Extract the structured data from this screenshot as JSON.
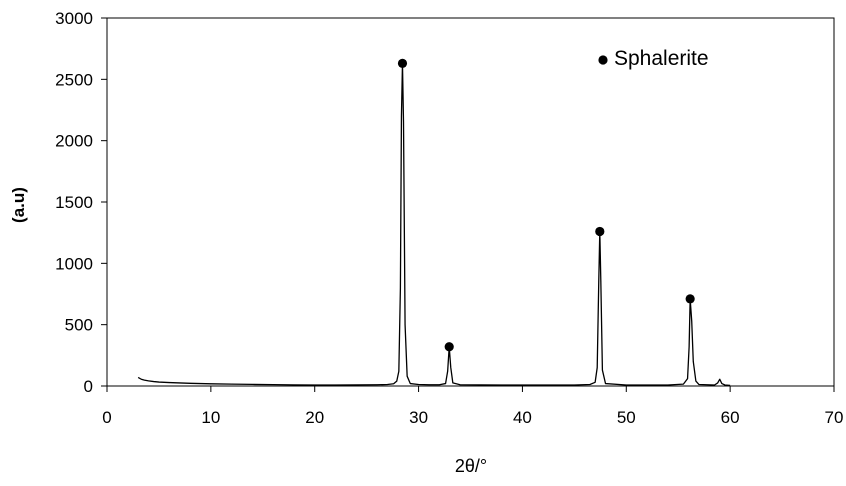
{
  "chart_data": {
    "type": "line",
    "xlabel": "2θ/°",
    "ylabel": "(a.u)",
    "xlim": [
      0,
      70
    ],
    "ylim": [
      0,
      3000
    ],
    "x_ticks": [
      0,
      10,
      20,
      30,
      40,
      50,
      60,
      70
    ],
    "y_ticks": [
      0,
      500,
      1000,
      1500,
      2000,
      2500,
      3000
    ],
    "grid": false,
    "legend": {
      "position": "top-right",
      "entries": [
        {
          "label": "Sphalerite",
          "marker": "filled-circle",
          "color": "#000000"
        }
      ]
    },
    "series": [
      {
        "color": "#000000",
        "points": [
          [
            3.0,
            70
          ],
          [
            3.3,
            55
          ],
          [
            3.6,
            48
          ],
          [
            4.0,
            42
          ],
          [
            4.5,
            36
          ],
          [
            5.0,
            32
          ],
          [
            5.5,
            30
          ],
          [
            6.0,
            28
          ],
          [
            7.0,
            25
          ],
          [
            8.0,
            22
          ],
          [
            9.0,
            20
          ],
          [
            10.0,
            18
          ],
          [
            12.0,
            15
          ],
          [
            14.0,
            13
          ],
          [
            16.0,
            11
          ],
          [
            18.0,
            9
          ],
          [
            20.0,
            8
          ],
          [
            22.0,
            8
          ],
          [
            24.0,
            9
          ],
          [
            26.0,
            10
          ],
          [
            27.0,
            12
          ],
          [
            27.6,
            18
          ],
          [
            27.9,
            40
          ],
          [
            28.1,
            120
          ],
          [
            28.25,
            800
          ],
          [
            28.35,
            2200
          ],
          [
            28.45,
            2630
          ],
          [
            28.55,
            2150
          ],
          [
            28.7,
            500
          ],
          [
            28.9,
            80
          ],
          [
            29.2,
            20
          ],
          [
            30.0,
            12
          ],
          [
            31.0,
            10
          ],
          [
            32.0,
            10
          ],
          [
            32.6,
            20
          ],
          [
            32.8,
            120
          ],
          [
            32.95,
            320
          ],
          [
            33.1,
            150
          ],
          [
            33.3,
            25
          ],
          [
            34.0,
            10
          ],
          [
            38.0,
            8
          ],
          [
            42.0,
            8
          ],
          [
            45.0,
            8
          ],
          [
            46.5,
            12
          ],
          [
            47.0,
            30
          ],
          [
            47.2,
            150
          ],
          [
            47.35,
            850
          ],
          [
            47.45,
            1260
          ],
          [
            47.55,
            850
          ],
          [
            47.7,
            130
          ],
          [
            48.0,
            20
          ],
          [
            50.0,
            8
          ],
          [
            52.0,
            8
          ],
          [
            54.0,
            8
          ],
          [
            55.5,
            15
          ],
          [
            55.9,
            60
          ],
          [
            56.05,
            320
          ],
          [
            56.15,
            710
          ],
          [
            56.3,
            530
          ],
          [
            56.45,
            200
          ],
          [
            56.7,
            40
          ],
          [
            57.0,
            12
          ],
          [
            58.5,
            8
          ],
          [
            58.8,
            25
          ],
          [
            59.0,
            55
          ],
          [
            59.2,
            20
          ],
          [
            59.5,
            8
          ],
          [
            60.0,
            5
          ]
        ]
      }
    ],
    "peak_markers": [
      {
        "x": 28.45,
        "y": 2630
      },
      {
        "x": 32.95,
        "y": 320
      },
      {
        "x": 47.45,
        "y": 1260
      },
      {
        "x": 56.15,
        "y": 710
      }
    ]
  }
}
